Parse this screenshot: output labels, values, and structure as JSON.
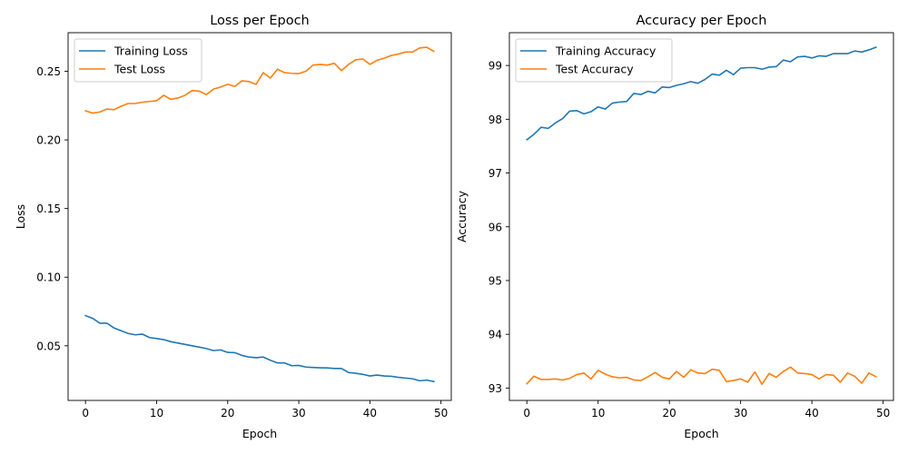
{
  "colors": {
    "training": "#1f77b4",
    "test": "#ff7f0e"
  },
  "chart_data": [
    {
      "type": "line",
      "title": "Loss per Epoch",
      "xlabel": "Epoch",
      "ylabel": "Loss",
      "xlim": [
        -2.45,
        51.45
      ],
      "ylim": [
        0.0102,
        0.2781
      ],
      "xticks": [
        0,
        10,
        20,
        30,
        40,
        50
      ],
      "yticks": [
        0.05,
        0.1,
        0.15,
        0.2,
        0.25
      ],
      "ytick_labels": [
        "0.05",
        "0.10",
        "0.15",
        "0.20",
        "0.25"
      ],
      "legend": "upper-left",
      "x": [
        0,
        1,
        2,
        3,
        4,
        5,
        6,
        7,
        8,
        9,
        10,
        11,
        12,
        13,
        14,
        15,
        16,
        17,
        18,
        19,
        20,
        21,
        22,
        23,
        24,
        25,
        26,
        27,
        28,
        29,
        30,
        31,
        32,
        33,
        34,
        35,
        36,
        37,
        38,
        39,
        40,
        41,
        42,
        43,
        44,
        45,
        46,
        47,
        48,
        49
      ],
      "series": [
        {
          "name": "Training Loss",
          "color": "#1f77b4",
          "values": [
            0.072,
            0.07,
            0.0665,
            0.0665,
            0.063,
            0.061,
            0.059,
            0.058,
            0.0585,
            0.056,
            0.0553,
            0.0545,
            0.053,
            0.052,
            0.051,
            0.05,
            0.049,
            0.048,
            0.0465,
            0.047,
            0.0452,
            0.045,
            0.043,
            0.0418,
            0.0413,
            0.0418,
            0.0395,
            0.0375,
            0.0375,
            0.0355,
            0.0357,
            0.0345,
            0.0342,
            0.034,
            0.0339,
            0.0335,
            0.0335,
            0.0305,
            0.03,
            0.0292,
            0.028,
            0.0287,
            0.028,
            0.0278,
            0.027,
            0.0265,
            0.026,
            0.0245,
            0.025,
            0.024
          ]
        },
        {
          "name": "Test Loss",
          "color": "#ff7f0e",
          "values": [
            0.2212,
            0.2195,
            0.2203,
            0.2225,
            0.222,
            0.2245,
            0.2265,
            0.2265,
            0.2275,
            0.228,
            0.2285,
            0.2325,
            0.2295,
            0.2305,
            0.2325,
            0.236,
            0.2355,
            0.233,
            0.237,
            0.2385,
            0.2405,
            0.239,
            0.243,
            0.2425,
            0.2405,
            0.249,
            0.245,
            0.2515,
            0.249,
            0.2485,
            0.2483,
            0.25,
            0.2545,
            0.255,
            0.2545,
            0.2558,
            0.2505,
            0.255,
            0.2583,
            0.259,
            0.255,
            0.258,
            0.2595,
            0.2615,
            0.2625,
            0.264,
            0.264,
            0.267,
            0.2675,
            0.2645
          ]
        }
      ]
    },
    {
      "type": "line",
      "title": "Accuracy per Epoch",
      "xlabel": "Epoch",
      "ylabel": "Accuracy",
      "xlim": [
        -2.45,
        51.45
      ],
      "ylim": [
        92.77,
        99.61
      ],
      "xticks": [
        0,
        10,
        20,
        30,
        40,
        50
      ],
      "yticks": [
        93,
        94,
        95,
        96,
        97,
        98,
        99
      ],
      "ytick_labels": [
        "93",
        "94",
        "95",
        "96",
        "97",
        "98",
        "99"
      ],
      "legend": "upper-left",
      "x": [
        0,
        1,
        2,
        3,
        4,
        5,
        6,
        7,
        8,
        9,
        10,
        11,
        12,
        13,
        14,
        15,
        16,
        17,
        18,
        19,
        20,
        21,
        22,
        23,
        24,
        25,
        26,
        27,
        28,
        29,
        30,
        31,
        32,
        33,
        34,
        35,
        36,
        37,
        38,
        39,
        40,
        41,
        42,
        43,
        44,
        45,
        46,
        47,
        48,
        49
      ],
      "series": [
        {
          "name": "Training Accuracy",
          "color": "#1f77b4",
          "values": [
            97.62,
            97.72,
            97.85,
            97.83,
            97.93,
            98.01,
            98.15,
            98.16,
            98.1,
            98.14,
            98.23,
            98.19,
            98.3,
            98.32,
            98.33,
            98.48,
            98.46,
            98.52,
            98.49,
            98.6,
            98.59,
            98.63,
            98.66,
            98.7,
            98.67,
            98.74,
            98.84,
            98.82,
            98.91,
            98.83,
            98.95,
            98.96,
            98.96,
            98.93,
            98.97,
            98.98,
            99.1,
            99.07,
            99.16,
            99.17,
            99.14,
            99.18,
            99.17,
            99.22,
            99.22,
            99.22,
            99.27,
            99.25,
            99.29,
            99.34
          ]
        },
        {
          "name": "Test Accuracy",
          "color": "#ff7f0e",
          "values": [
            93.08,
            93.22,
            93.16,
            93.16,
            93.17,
            93.15,
            93.18,
            93.25,
            93.28,
            93.17,
            93.33,
            93.26,
            93.21,
            93.19,
            93.2,
            93.15,
            93.14,
            93.21,
            93.29,
            93.2,
            93.17,
            93.31,
            93.2,
            93.34,
            93.28,
            93.27,
            93.35,
            93.33,
            93.12,
            93.14,
            93.17,
            93.11,
            93.3,
            93.07,
            93.27,
            93.2,
            93.31,
            93.39,
            93.28,
            93.27,
            93.25,
            93.17,
            93.25,
            93.24,
            93.11,
            93.28,
            93.22,
            93.09,
            93.28,
            93.21
          ]
        }
      ]
    }
  ]
}
